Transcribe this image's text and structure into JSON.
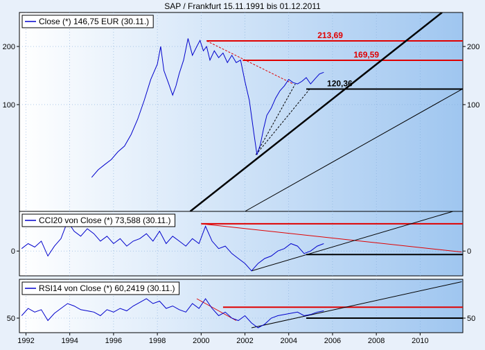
{
  "title": "SAP / Frankfurt 15.11.1991 bis 01.12.2011",
  "colors": {
    "background": "#e8f0fa",
    "panel_left": "#ffffff",
    "panel_right": "#9fc6f0",
    "series": "#0000cc",
    "resistance": "#e00000",
    "trend": "#000000"
  },
  "chart_data": [
    {
      "type": "line",
      "panel": "price",
      "legend": "Close (*) 146,75 EUR (30.11.)",
      "y_scale": "log",
      "ylim": [
        28,
        300
      ],
      "yticks": [
        100,
        200
      ],
      "ytick_labels": [
        "100",
        "200"
      ],
      "x_range": [
        1991.7,
        2011.95
      ],
      "series": [
        {
          "x": [
            1995.0,
            1995.3,
            1995.6,
            1995.9,
            1996.2,
            1996.5,
            1996.8,
            1997.1,
            1997.4,
            1997.7,
            1998.0,
            1998.15,
            1998.3,
            1998.5,
            1998.7,
            1998.85,
            1999.0,
            1999.2,
            1999.4,
            1999.6,
            1999.8,
            1999.95,
            2000.1,
            2000.25,
            2000.4,
            2000.6,
            2000.8,
            2001.0,
            2001.2,
            2001.4,
            2001.6,
            2001.8,
            2002.0,
            2002.2,
            2002.4,
            2002.55,
            2002.7,
            2002.85,
            2003.0,
            2003.2,
            2003.4,
            2003.6,
            2003.8,
            2004.0,
            2004.2,
            2004.4,
            2004.6,
            2004.8,
            2005.0,
            2005.2,
            2005.4,
            2005.6
          ],
          "y": [
            42,
            46,
            49,
            52,
            57,
            61,
            70,
            84,
            105,
            135,
            162,
            200,
            150,
            130,
            112,
            125,
            145,
            170,
            220,
            180,
            200,
            215,
            190,
            200,
            170,
            190,
            175,
            185,
            165,
            180,
            165,
            170,
            132,
            105,
            72,
            55,
            62,
            75,
            88,
            96,
            108,
            118,
            125,
            135,
            130,
            128,
            132,
            138,
            128,
            136,
            144,
            147
          ]
        }
      ],
      "lines": [
        {
          "style": "resistance",
          "label": "213,69",
          "y": 213.69,
          "x_from": 2000.25,
          "x_to": 2011.95
        },
        {
          "style": "resistance",
          "label": "169,59",
          "y": 169.59,
          "x_from": 2001.9,
          "x_to": 2011.95
        },
        {
          "style": "support",
          "label": "120,36",
          "y": 120.36,
          "x_from": 2004.8,
          "x_to": 2011.95
        }
      ]
    },
    {
      "type": "line",
      "panel": "cci",
      "legend": "CCI20 von Close (*) 73,588 (30.11.)",
      "ylim": [
        -50,
        80
      ],
      "yticks": [
        0
      ],
      "ytick_labels": [
        "0"
      ],
      "x_range": [
        1991.7,
        2011.95
      ],
      "series": [
        {
          "x": [
            1991.8,
            1992.1,
            1992.4,
            1992.7,
            1993.0,
            1993.3,
            1993.6,
            1993.9,
            1994.2,
            1994.5,
            1994.8,
            1995.1,
            1995.4,
            1995.7,
            1996.0,
            1996.3,
            1996.6,
            1996.9,
            1997.2,
            1997.5,
            1997.8,
            1998.1,
            1998.4,
            1998.7,
            1999.0,
            1999.3,
            1999.6,
            1999.9,
            2000.2,
            2000.5,
            2000.8,
            2001.1,
            2001.4,
            2001.7,
            2002.0,
            2002.3,
            2002.6,
            2002.9,
            2003.2,
            2003.5,
            2003.8,
            2004.1,
            2004.4,
            2004.7,
            2005.0,
            2005.3,
            2005.6
          ],
          "y": [
            5,
            15,
            8,
            20,
            -10,
            10,
            25,
            60,
            40,
            30,
            45,
            35,
            20,
            30,
            15,
            25,
            10,
            20,
            25,
            35,
            20,
            40,
            15,
            30,
            20,
            10,
            25,
            15,
            50,
            20,
            5,
            10,
            -5,
            -15,
            -25,
            -40,
            -25,
            -15,
            -10,
            0,
            5,
            15,
            10,
            -5,
            0,
            10,
            15
          ]
        }
      ],
      "lines": [
        {
          "style": "resistance",
          "label": "",
          "y": 55,
          "x_from": 2000.0,
          "x_to": 2011.95
        },
        {
          "style": "support",
          "label": "",
          "y": -7,
          "x_from": 2004.8,
          "x_to": 2011.95
        }
      ]
    },
    {
      "type": "line",
      "panel": "rsi",
      "legend": "RSI14 von Close (*) 60,2419 (30.11.)",
      "ylim": [
        38,
        82
      ],
      "yticks": [
        50
      ],
      "ytick_labels": [
        "50"
      ],
      "x_range": [
        1991.7,
        2011.95
      ],
      "series": [
        {
          "x": [
            1991.8,
            1992.1,
            1992.4,
            1992.7,
            1993.0,
            1993.3,
            1993.6,
            1993.9,
            1994.2,
            1994.5,
            1994.8,
            1995.1,
            1995.4,
            1995.7,
            1996.0,
            1996.3,
            1996.6,
            1996.9,
            1997.2,
            1997.5,
            1997.8,
            1998.1,
            1998.4,
            1998.7,
            1999.0,
            1999.3,
            1999.6,
            1999.9,
            2000.2,
            2000.5,
            2000.8,
            2001.1,
            2001.4,
            2001.7,
            2002.0,
            2002.3,
            2002.6,
            2002.9,
            2003.2,
            2003.5,
            2003.8,
            2004.1,
            2004.4,
            2004.7,
            2005.0,
            2005.3,
            2005.6
          ],
          "y": [
            52,
            58,
            55,
            57,
            48,
            54,
            58,
            62,
            60,
            57,
            56,
            55,
            52,
            57,
            55,
            58,
            56,
            60,
            63,
            66,
            62,
            64,
            58,
            60,
            57,
            55,
            62,
            58,
            66,
            58,
            52,
            55,
            50,
            48,
            52,
            46,
            42,
            45,
            50,
            52,
            53,
            54,
            55,
            52,
            53,
            55,
            56
          ]
        }
      ],
      "lines": [
        {
          "style": "resistance",
          "label": "",
          "y": 59,
          "x_from": 2001.0,
          "x_to": 2011.95
        },
        {
          "style": "support",
          "label": "",
          "y": 50,
          "x_from": 2004.8,
          "x_to": 2011.95
        }
      ]
    }
  ],
  "x_axis": {
    "ticks": [
      1992,
      1994,
      1996,
      1998,
      2000,
      2002,
      2004,
      2006,
      2008,
      2010
    ],
    "labels": [
      "1992",
      "1994",
      "1996",
      "1998",
      "2000",
      "2002",
      "2004",
      "2006",
      "2008",
      "2010"
    ]
  }
}
